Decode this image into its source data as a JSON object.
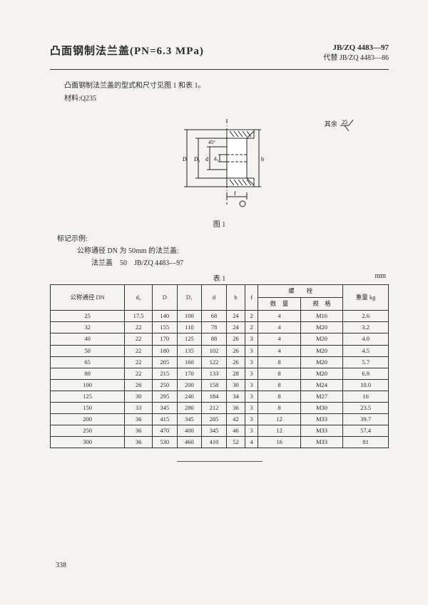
{
  "header": {
    "title": "凸面钢制法兰盖(PN=6.3 MPa)",
    "std_main": "JB/ZQ 4483—97",
    "std_sub": "代替 JB/ZQ 4483—86"
  },
  "intro": {
    "line1": "凸面钢制法兰盖的型式和尺寸见图 1 和表 1。",
    "line2": "材料:Q235"
  },
  "figure": {
    "caption": "图 1",
    "surface_label": "其余",
    "surface_value": "25",
    "labels": {
      "D": "D",
      "D1": "D₁",
      "d": "d",
      "d0": "d₀",
      "b": "b",
      "f": "f",
      "angle": "45°"
    }
  },
  "marking": {
    "head": "标记示例:",
    "line1": "公称通径 DN 为 50mm 的法兰盖:",
    "line2": "法兰盖　50　JB/ZQ 4483—97"
  },
  "table": {
    "caption": "表 1",
    "unit": "mm",
    "headers": {
      "dn": "公称通径\nDN",
      "d0": "d₀",
      "D": "D",
      "D1": "D₁",
      "d": "d",
      "b": "b",
      "f": "f",
      "bolt": "螺　　栓",
      "qty": "数　量",
      "spec": "规　格",
      "wt": "重量\nkg"
    },
    "rows": [
      [
        "25",
        "17.5",
        "140",
        "100",
        "68",
        "24",
        "2",
        "4",
        "M16",
        "2.6"
      ],
      [
        "32",
        "22",
        "155",
        "110",
        "78",
        "24",
        "2",
        "4",
        "M20",
        "3.2"
      ],
      [
        "40",
        "22",
        "170",
        "125",
        "88",
        "26",
        "3",
        "4",
        "M20",
        "4.0"
      ],
      [
        "50",
        "22",
        "180",
        "135",
        "102",
        "26",
        "3",
        "4",
        "M20",
        "4.5"
      ],
      [
        "65",
        "22",
        "205",
        "160",
        "122",
        "26",
        "3",
        "8",
        "M20",
        "5.7"
      ],
      [
        "80",
        "22",
        "215",
        "170",
        "133",
        "28",
        "3",
        "8",
        "M20",
        "6.9"
      ],
      [
        "100",
        "26",
        "250",
        "200",
        "158",
        "30",
        "3",
        "8",
        "M24",
        "10.0"
      ],
      [
        "125",
        "30",
        "295",
        "240",
        "184",
        "34",
        "3",
        "8",
        "M27",
        "16"
      ],
      [
        "150",
        "33",
        "345",
        "280",
        "212",
        "36",
        "3",
        "8",
        "M30",
        "23.5"
      ],
      [
        "200",
        "36",
        "415",
        "345",
        "285",
        "42",
        "3",
        "12",
        "M33",
        "39.7"
      ],
      [
        "250",
        "36",
        "470",
        "400",
        "345",
        "46",
        "3",
        "12",
        "M33",
        "57.4"
      ],
      [
        "300",
        "36",
        "530",
        "460",
        "410",
        "52",
        "4",
        "16",
        "M33",
        "81"
      ]
    ]
  },
  "page_num": "338"
}
